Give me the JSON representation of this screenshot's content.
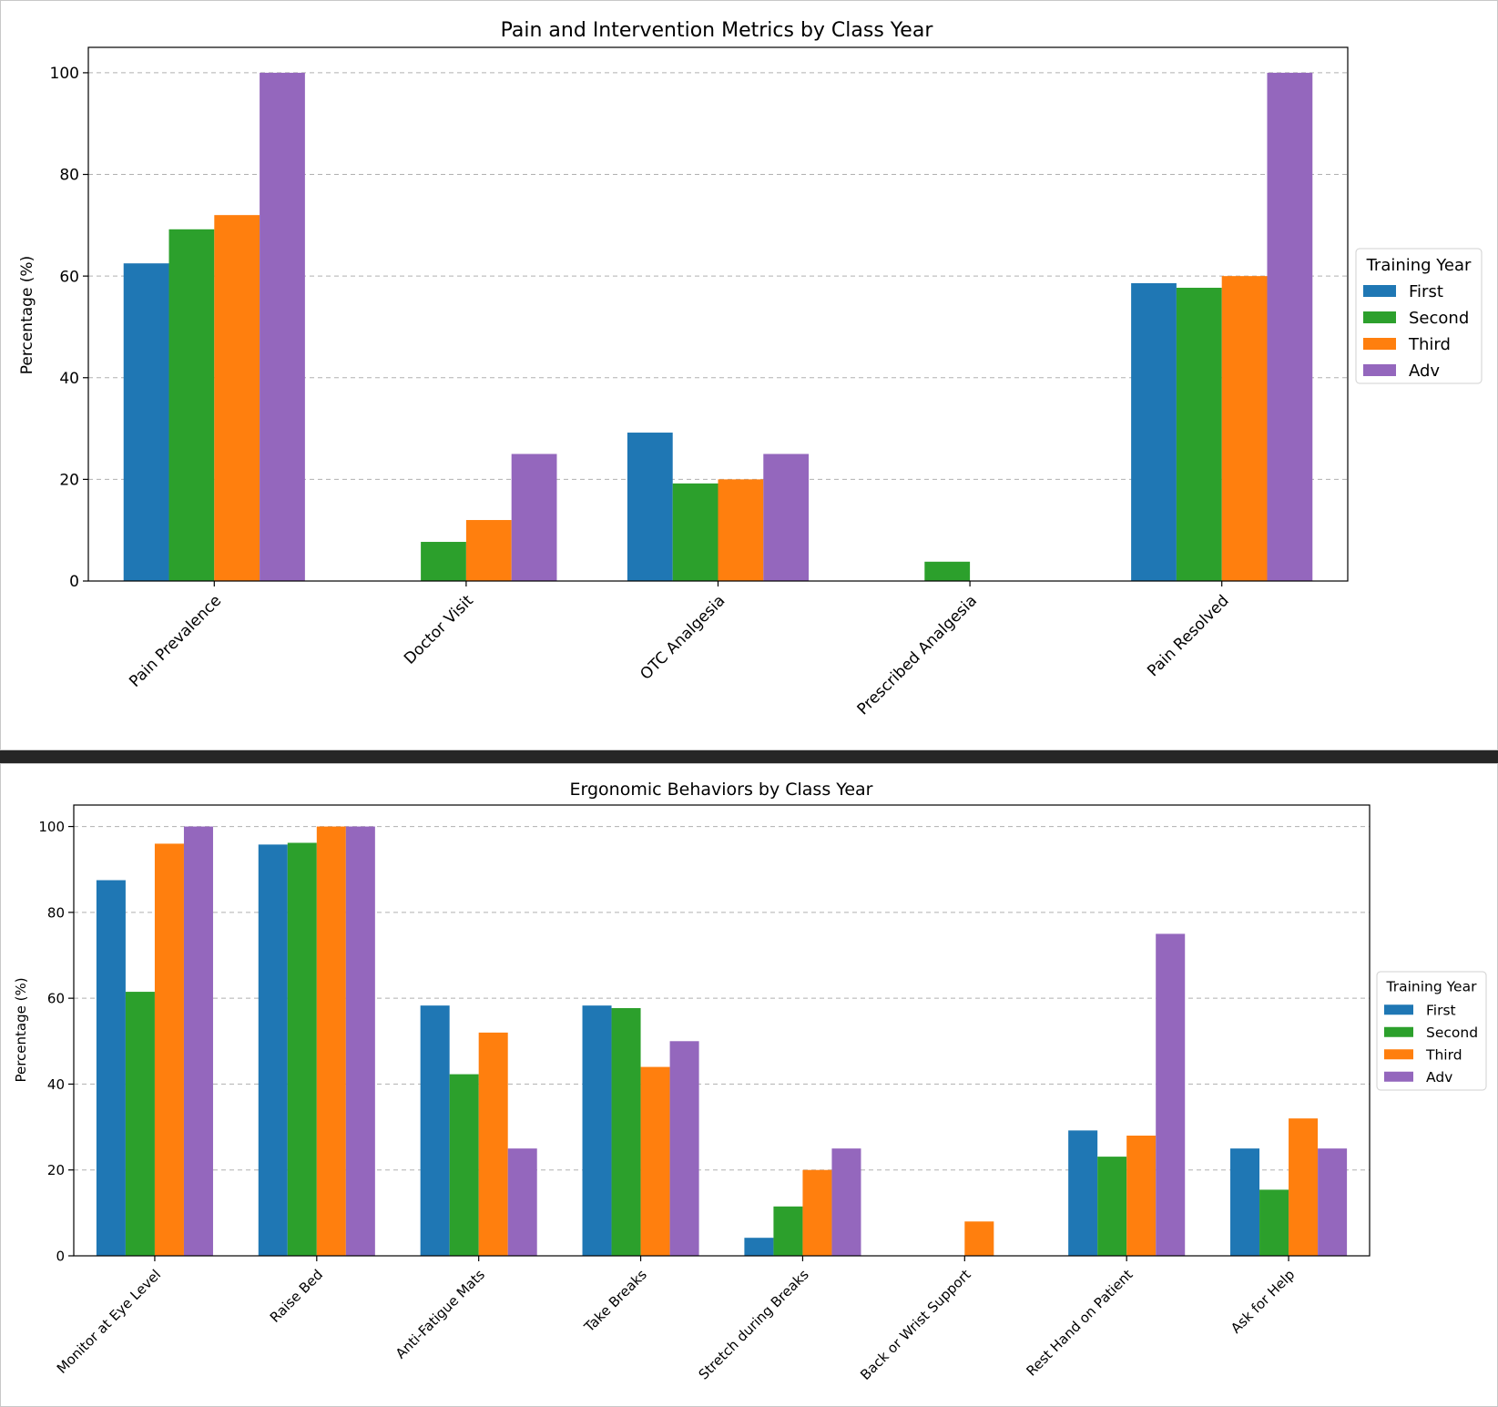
{
  "chart_data": [
    {
      "type": "bar",
      "title": "Pain and Intervention Metrics by Class Year",
      "xlabel": "",
      "ylabel": "Percentage (%)",
      "ylim": [
        0,
        105
      ],
      "yticks": [
        0,
        20,
        40,
        60,
        80,
        100
      ],
      "grid": true,
      "legend_title": "Training Year",
      "legend_position": "right",
      "categories": [
        "Pain Prevalence",
        "Doctor Visit",
        "OTC Analgesia",
        "Prescribed Analgesia",
        "Pain Resolved"
      ],
      "series": [
        {
          "name": "First",
          "color": "#1f77b4",
          "values": [
            62.5,
            0,
            29.2,
            0,
            58.6
          ]
        },
        {
          "name": "Second",
          "color": "#2ca02c",
          "values": [
            69.2,
            7.7,
            19.2,
            3.8,
            57.7
          ]
        },
        {
          "name": "Third",
          "color": "#ff7f0e",
          "values": [
            72.0,
            12.0,
            20.0,
            0,
            60.0
          ]
        },
        {
          "name": "Adv",
          "color": "#9467bd",
          "values": [
            100,
            25,
            25,
            0,
            100
          ]
        }
      ]
    },
    {
      "type": "bar",
      "title": "Ergonomic Behaviors by Class Year",
      "xlabel": "",
      "ylabel": "Percentage (%)",
      "ylim": [
        0,
        105
      ],
      "yticks": [
        0,
        20,
        40,
        60,
        80,
        100
      ],
      "grid": true,
      "legend_title": "Training Year",
      "legend_position": "right",
      "categories": [
        "Monitor at Eye Level",
        "Raise Bed",
        "Anti-Fatigue Mats",
        "Take Breaks",
        "Stretch during Breaks",
        "Back or Wrist Support",
        "Rest Hand on Patient",
        "Ask for Help"
      ],
      "series": [
        {
          "name": "First",
          "color": "#1f77b4",
          "values": [
            87.5,
            95.8,
            58.3,
            58.3,
            4.2,
            0,
            29.2,
            25.0
          ]
        },
        {
          "name": "Second",
          "color": "#2ca02c",
          "values": [
            61.5,
            96.2,
            42.3,
            57.7,
            11.5,
            0,
            23.1,
            15.4
          ]
        },
        {
          "name": "Third",
          "color": "#ff7f0e",
          "values": [
            96.0,
            100,
            52.0,
            44.0,
            20.0,
            8.0,
            28.0,
            32.0
          ]
        },
        {
          "name": "Adv",
          "color": "#9467bd",
          "values": [
            100,
            100,
            25,
            50,
            25,
            0,
            75,
            25
          ]
        }
      ]
    }
  ]
}
